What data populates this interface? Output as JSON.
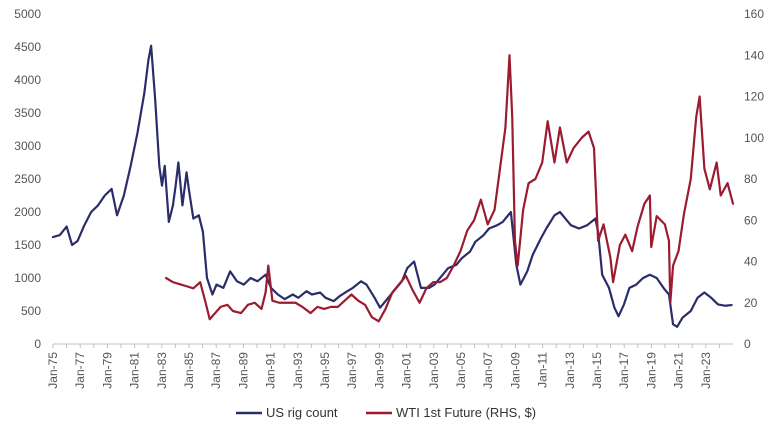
{
  "chart_data": {
    "type": "line",
    "grid": false,
    "legend_position": "bottom",
    "y_left": {
      "min": 0,
      "max": 5000,
      "ticks": [
        "0",
        "500",
        "1000",
        "1500",
        "2000",
        "2500",
        "3000",
        "3500",
        "4000",
        "4500",
        "5000"
      ]
    },
    "y_right": {
      "min": 0,
      "max": 160,
      "ticks": [
        "0",
        "20",
        "40",
        "60",
        "80",
        "100",
        "120",
        "140",
        "160"
      ]
    },
    "x_range": [
      1975.0,
      2024.9
    ],
    "x_tick_labels": [
      "Jan-75",
      "Jan-77",
      "Jan-79",
      "Jan-81",
      "Jan-83",
      "Jan-85",
      "Jan-87",
      "Jan-89",
      "Jan-91",
      "Jan-93",
      "Jan-95",
      "Jan-97",
      "Jan-99",
      "Jan-01",
      "Jan-03",
      "Jan-05",
      "Jan-07",
      "Jan-09",
      "Jan-11",
      "Jan-13",
      "Jan-15",
      "Jan-17",
      "Jan-19",
      "Jan-21",
      "Jan-23"
    ],
    "series": [
      {
        "name": "US rig count",
        "axis": "left",
        "color": "#2b2d6b",
        "points": [
          [
            1975.0,
            1620
          ],
          [
            1975.5,
            1650
          ],
          [
            1976.0,
            1780
          ],
          [
            1976.4,
            1500
          ],
          [
            1976.8,
            1560
          ],
          [
            1977.3,
            1800
          ],
          [
            1977.8,
            2000
          ],
          [
            1978.3,
            2100
          ],
          [
            1978.8,
            2250
          ],
          [
            1979.3,
            2350
          ],
          [
            1979.7,
            1950
          ],
          [
            1980.2,
            2250
          ],
          [
            1980.7,
            2700
          ],
          [
            1981.2,
            3200
          ],
          [
            1981.7,
            3800
          ],
          [
            1982.0,
            4300
          ],
          [
            1982.2,
            4520
          ],
          [
            1982.5,
            3700
          ],
          [
            1982.8,
            2700
          ],
          [
            1983.0,
            2400
          ],
          [
            1983.2,
            2700
          ],
          [
            1983.5,
            1850
          ],
          [
            1983.8,
            2100
          ],
          [
            1984.0,
            2400
          ],
          [
            1984.2,
            2750
          ],
          [
            1984.5,
            2100
          ],
          [
            1984.8,
            2600
          ],
          [
            1985.0,
            2300
          ],
          [
            1985.3,
            1900
          ],
          [
            1985.7,
            1950
          ],
          [
            1986.0,
            1700
          ],
          [
            1986.3,
            1000
          ],
          [
            1986.7,
            750
          ],
          [
            1987.0,
            900
          ],
          [
            1987.5,
            850
          ],
          [
            1988.0,
            1100
          ],
          [
            1988.5,
            950
          ],
          [
            1989.0,
            900
          ],
          [
            1989.5,
            1000
          ],
          [
            1990.0,
            950
          ],
          [
            1990.6,
            1050
          ],
          [
            1991.0,
            850
          ],
          [
            1991.5,
            750
          ],
          [
            1992.0,
            680
          ],
          [
            1992.6,
            750
          ],
          [
            1993.0,
            700
          ],
          [
            1993.6,
            800
          ],
          [
            1994.0,
            750
          ],
          [
            1994.6,
            780
          ],
          [
            1995.0,
            700
          ],
          [
            1995.6,
            650
          ],
          [
            1996.0,
            720
          ],
          [
            1996.6,
            800
          ],
          [
            1997.0,
            850
          ],
          [
            1997.6,
            950
          ],
          [
            1998.0,
            900
          ],
          [
            1998.6,
            700
          ],
          [
            1999.0,
            550
          ],
          [
            1999.6,
            700
          ],
          [
            2000.0,
            800
          ],
          [
            2000.6,
            950
          ],
          [
            2001.0,
            1150
          ],
          [
            2001.5,
            1250
          ],
          [
            2002.0,
            850
          ],
          [
            2002.6,
            850
          ],
          [
            2003.0,
            900
          ],
          [
            2003.6,
            1050
          ],
          [
            2004.0,
            1150
          ],
          [
            2004.6,
            1200
          ],
          [
            2005.0,
            1300
          ],
          [
            2005.6,
            1400
          ],
          [
            2006.0,
            1550
          ],
          [
            2006.6,
            1650
          ],
          [
            2007.0,
            1750
          ],
          [
            2007.6,
            1800
          ],
          [
            2008.0,
            1850
          ],
          [
            2008.6,
            2000
          ],
          [
            2009.0,
            1200
          ],
          [
            2009.3,
            900
          ],
          [
            2009.8,
            1100
          ],
          [
            2010.2,
            1350
          ],
          [
            2010.8,
            1600
          ],
          [
            2011.2,
            1750
          ],
          [
            2011.8,
            1950
          ],
          [
            2012.2,
            2000
          ],
          [
            2012.6,
            1900
          ],
          [
            2013.0,
            1800
          ],
          [
            2013.6,
            1750
          ],
          [
            2014.2,
            1800
          ],
          [
            2014.8,
            1900
          ],
          [
            2015.0,
            1700
          ],
          [
            2015.3,
            1050
          ],
          [
            2015.8,
            850
          ],
          [
            2016.2,
            550
          ],
          [
            2016.5,
            420
          ],
          [
            2016.9,
            600
          ],
          [
            2017.3,
            850
          ],
          [
            2017.8,
            900
          ],
          [
            2018.3,
            1000
          ],
          [
            2018.8,
            1050
          ],
          [
            2019.3,
            1000
          ],
          [
            2019.8,
            850
          ],
          [
            2020.2,
            750
          ],
          [
            2020.5,
            300
          ],
          [
            2020.8,
            260
          ],
          [
            2021.2,
            400
          ],
          [
            2021.8,
            500
          ],
          [
            2022.3,
            700
          ],
          [
            2022.8,
            780
          ],
          [
            2023.3,
            700
          ],
          [
            2023.8,
            600
          ],
          [
            2024.3,
            580
          ],
          [
            2024.8,
            590
          ]
        ]
      },
      {
        "name": "WTI 1st Future (RHS, $)",
        "axis": "right",
        "color": "#9b1b30",
        "points": [
          [
            1983.3,
            32
          ],
          [
            1983.8,
            30
          ],
          [
            1984.3,
            29
          ],
          [
            1984.8,
            28
          ],
          [
            1985.3,
            27
          ],
          [
            1985.8,
            30
          ],
          [
            1986.2,
            20
          ],
          [
            1986.5,
            12
          ],
          [
            1986.9,
            15
          ],
          [
            1987.3,
            18
          ],
          [
            1987.8,
            19
          ],
          [
            1988.2,
            16
          ],
          [
            1988.8,
            15
          ],
          [
            1989.3,
            19
          ],
          [
            1989.8,
            20
          ],
          [
            1990.3,
            17
          ],
          [
            1990.6,
            25
          ],
          [
            1990.8,
            38
          ],
          [
            1991.1,
            21
          ],
          [
            1991.6,
            20
          ],
          [
            1992.2,
            20
          ],
          [
            1992.8,
            20
          ],
          [
            1993.3,
            18
          ],
          [
            1993.9,
            15
          ],
          [
            1994.4,
            18
          ],
          [
            1994.9,
            17
          ],
          [
            1995.4,
            18
          ],
          [
            1995.9,
            18
          ],
          [
            1996.4,
            21
          ],
          [
            1996.9,
            24
          ],
          [
            1997.4,
            21
          ],
          [
            1997.9,
            19
          ],
          [
            1998.4,
            13
          ],
          [
            1998.9,
            11
          ],
          [
            1999.4,
            17
          ],
          [
            1999.9,
            25
          ],
          [
            2000.4,
            29
          ],
          [
            2000.9,
            33
          ],
          [
            2001.4,
            26
          ],
          [
            2001.9,
            20
          ],
          [
            2002.4,
            27
          ],
          [
            2002.9,
            30
          ],
          [
            2003.4,
            30
          ],
          [
            2003.9,
            32
          ],
          [
            2004.4,
            38
          ],
          [
            2004.9,
            45
          ],
          [
            2005.4,
            55
          ],
          [
            2005.9,
            60
          ],
          [
            2006.4,
            70
          ],
          [
            2006.9,
            58
          ],
          [
            2007.4,
            65
          ],
          [
            2007.9,
            90
          ],
          [
            2008.2,
            105
          ],
          [
            2008.5,
            140
          ],
          [
            2008.7,
            110
          ],
          [
            2008.9,
            50
          ],
          [
            2009.1,
            38
          ],
          [
            2009.5,
            65
          ],
          [
            2009.9,
            78
          ],
          [
            2010.4,
            80
          ],
          [
            2010.9,
            88
          ],
          [
            2011.3,
            108
          ],
          [
            2011.8,
            88
          ],
          [
            2012.2,
            105
          ],
          [
            2012.7,
            88
          ],
          [
            2013.2,
            95
          ],
          [
            2013.8,
            100
          ],
          [
            2014.3,
            103
          ],
          [
            2014.7,
            95
          ],
          [
            2015.0,
            50
          ],
          [
            2015.4,
            58
          ],
          [
            2015.9,
            42
          ],
          [
            2016.1,
            30
          ],
          [
            2016.6,
            48
          ],
          [
            2017.0,
            53
          ],
          [
            2017.5,
            45
          ],
          [
            2017.9,
            57
          ],
          [
            2018.4,
            68
          ],
          [
            2018.8,
            72
          ],
          [
            2018.9,
            47
          ],
          [
            2019.3,
            62
          ],
          [
            2019.9,
            58
          ],
          [
            2020.2,
            50
          ],
          [
            2020.3,
            20
          ],
          [
            2020.5,
            38
          ],
          [
            2020.9,
            45
          ],
          [
            2021.3,
            63
          ],
          [
            2021.8,
            80
          ],
          [
            2022.2,
            110
          ],
          [
            2022.45,
            120
          ],
          [
            2022.8,
            85
          ],
          [
            2023.2,
            75
          ],
          [
            2023.7,
            88
          ],
          [
            2024.0,
            72
          ],
          [
            2024.5,
            78
          ],
          [
            2024.9,
            68
          ]
        ]
      }
    ]
  }
}
